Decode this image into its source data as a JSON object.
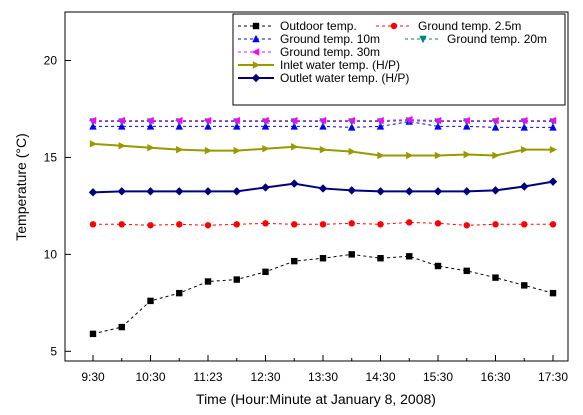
{
  "chart_data": {
    "type": "line",
    "xlabel": "Time (Hour:Minute at January 8, 2008)",
    "ylabel": "Temperature (°C)",
    "ylim": [
      4.5,
      22.5
    ],
    "y_ticks": [
      5,
      10,
      15,
      20
    ],
    "x_tick_labels": [
      "9:30",
      "10:30",
      "11:23",
      "12:30",
      "13:30",
      "14:30",
      "15:30",
      "16:30",
      "17:30"
    ],
    "legend_position": "top-right",
    "grid": false,
    "x_count": 17,
    "series": [
      {
        "name": "Outdoor temp.",
        "color": "#000000",
        "dash": "3,3",
        "marker": "square",
        "values": [
          5.9,
          6.25,
          7.6,
          8.0,
          8.6,
          8.7,
          9.1,
          9.65,
          9.8,
          10.0,
          9.8,
          9.9,
          9.4,
          9.15,
          8.8,
          8.4,
          8.0
        ]
      },
      {
        "name": "Ground temp. 2.5m",
        "color": "#ff0000",
        "dash": "3,3",
        "marker": "circle",
        "values": [
          11.55,
          11.55,
          11.5,
          11.55,
          11.5,
          11.55,
          11.6,
          11.55,
          11.55,
          11.6,
          11.55,
          11.65,
          11.6,
          11.5,
          11.55,
          11.55,
          11.55
        ]
      },
      {
        "name": "Ground temp. 10m",
        "color": "#0000ff",
        "dash": "3,3",
        "marker": "triangle-up",
        "values": [
          16.6,
          16.6,
          16.6,
          16.6,
          16.6,
          16.6,
          16.6,
          16.6,
          16.6,
          16.55,
          16.6,
          16.85,
          16.6,
          16.6,
          16.55,
          16.55,
          16.55
        ]
      },
      {
        "name": "Ground temp. 20m",
        "color": "#008080",
        "dash": "3,3",
        "marker": "triangle-down",
        "values": [
          16.85,
          16.85,
          16.85,
          16.85,
          16.85,
          16.85,
          16.85,
          16.85,
          16.85,
          16.85,
          16.85,
          16.9,
          16.85,
          16.85,
          16.85,
          16.85,
          16.85
        ]
      },
      {
        "name": "Ground temp. 30m",
        "color": "#ff00ff",
        "dash": "3,3",
        "marker": "triangle-left",
        "values": [
          16.9,
          16.9,
          16.9,
          16.9,
          16.9,
          16.9,
          16.9,
          16.9,
          16.9,
          16.9,
          16.9,
          16.95,
          16.9,
          16.9,
          16.9,
          16.9,
          16.9
        ]
      },
      {
        "name": "Inlet water temp. (H/P)",
        "color": "#999900",
        "dash": "",
        "marker": "triangle-right",
        "values": [
          15.7,
          15.6,
          15.5,
          15.4,
          15.35,
          15.35,
          15.45,
          15.55,
          15.4,
          15.3,
          15.1,
          15.1,
          15.1,
          15.15,
          15.1,
          15.4,
          15.4
        ]
      },
      {
        "name": "Outlet water temp. (H/P)",
        "color": "#000080",
        "dash": "",
        "marker": "diamond",
        "values": [
          13.2,
          13.25,
          13.25,
          13.25,
          13.25,
          13.25,
          13.45,
          13.65,
          13.4,
          13.3,
          13.25,
          13.25,
          13.25,
          13.25,
          13.3,
          13.5,
          13.75
        ]
      }
    ]
  }
}
